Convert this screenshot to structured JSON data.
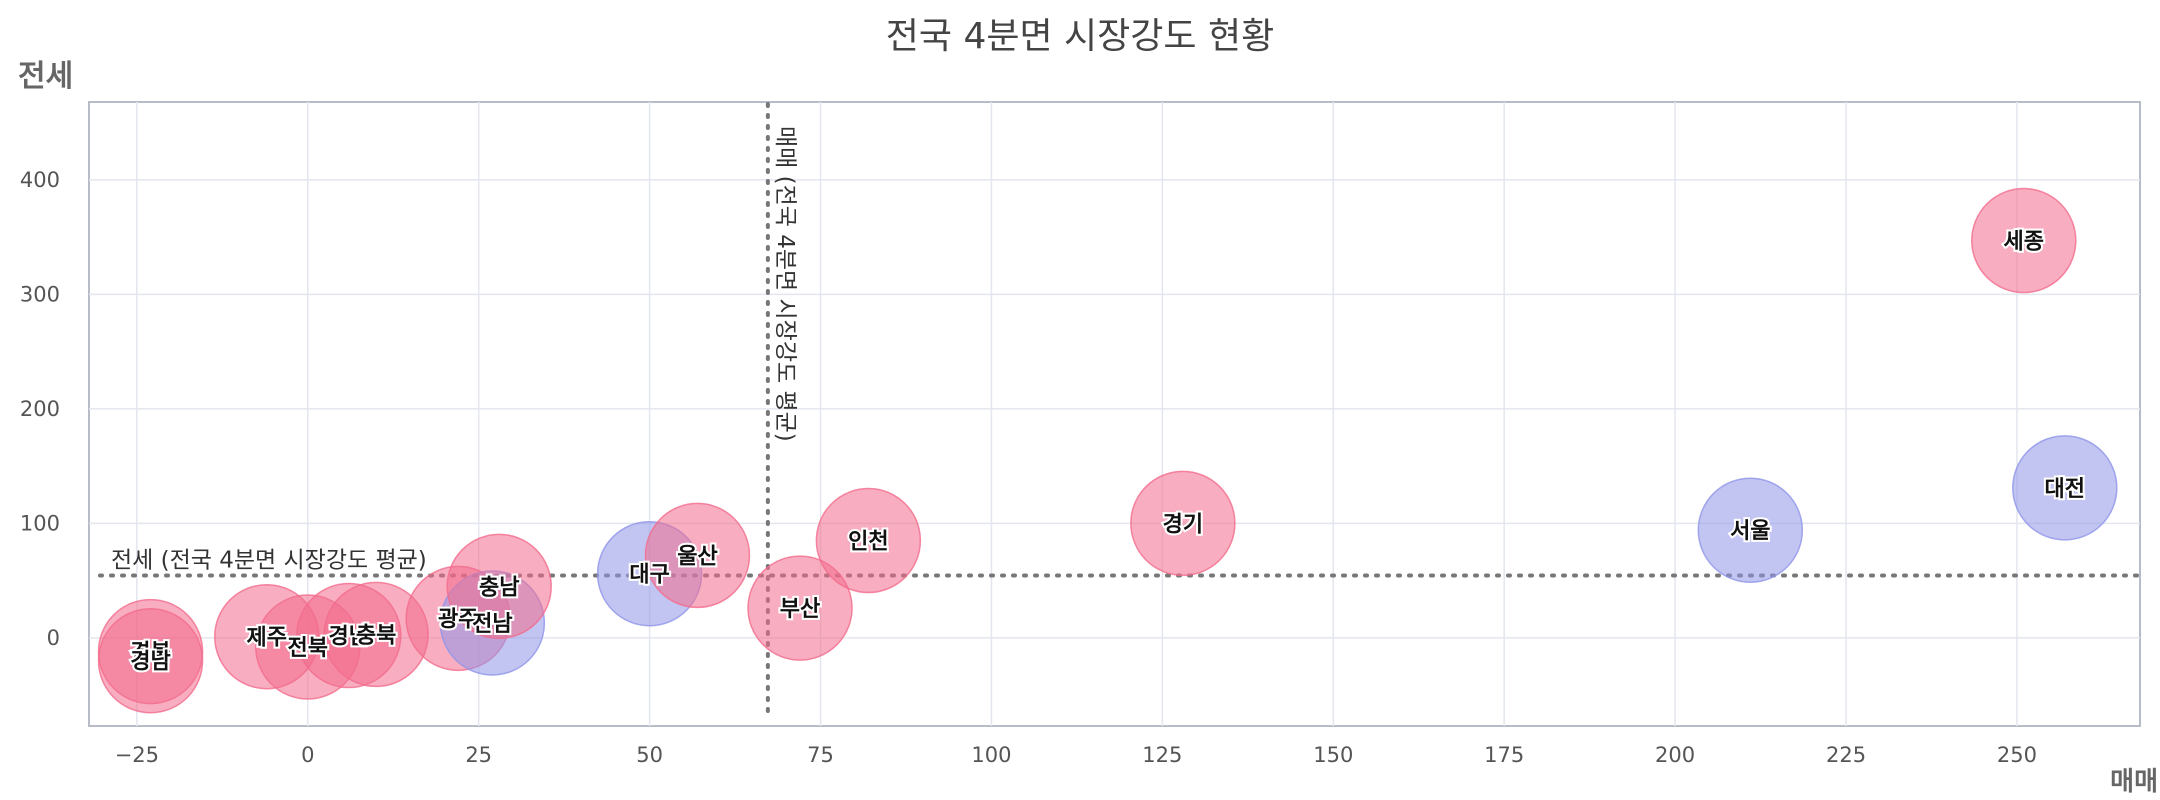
{
  "chart_data": {
    "type": "scatter",
    "title": "전국 4분면 시장강도 현황",
    "xlabel": "매매",
    "ylabel": "전세",
    "xlim": [
      -32,
      268
    ],
    "ylim": [
      -77,
      468
    ],
    "x_ticks": [
      -25,
      0,
      25,
      50,
      75,
      100,
      125,
      150,
      175,
      200,
      225,
      250
    ],
    "y_ticks": [
      0,
      100,
      200,
      300,
      400
    ],
    "grid": true,
    "reference_lines": {
      "x_mean": {
        "value": 67.3,
        "label": "매매 (전국 4분면 시장강도 평균)"
      },
      "y_mean": {
        "value": 54.5,
        "label": "전세 (전국 4분면 시장강도 평균)"
      }
    },
    "colors": {
      "pink": "#f26b8c",
      "blue": "#8f95e8"
    },
    "points": [
      {
        "name": "경북",
        "x": -23,
        "y": -12,
        "color": "pink"
      },
      {
        "name": "경남",
        "x": -23,
        "y": -20,
        "color": "pink"
      },
      {
        "name": "제주",
        "x": -6,
        "y": 1,
        "color": "pink"
      },
      {
        "name": "전북",
        "x": 0,
        "y": -8,
        "color": "pink"
      },
      {
        "name": "경남",
        "x": 6,
        "y": 2,
        "color": "pink"
      },
      {
        "name": "충북",
        "x": 10,
        "y": 3,
        "color": "pink"
      },
      {
        "name": "광주",
        "x": 22,
        "y": 17,
        "color": "pink"
      },
      {
        "name": "전남",
        "x": 27,
        "y": 13,
        "color": "blue"
      },
      {
        "name": "충남",
        "x": 28,
        "y": 45,
        "color": "pink"
      },
      {
        "name": "대구",
        "x": 50,
        "y": 56,
        "color": "blue"
      },
      {
        "name": "울산",
        "x": 57,
        "y": 72,
        "color": "pink"
      },
      {
        "name": "부산",
        "x": 72,
        "y": 26,
        "color": "pink"
      },
      {
        "name": "인천",
        "x": 82,
        "y": 85,
        "color": "pink"
      },
      {
        "name": "경기",
        "x": 128,
        "y": 100,
        "color": "pink"
      },
      {
        "name": "서울",
        "x": 211,
        "y": 94,
        "color": "blue"
      },
      {
        "name": "세종",
        "x": 251,
        "y": 347,
        "color": "pink"
      },
      {
        "name": "대전",
        "x": 257,
        "y": 131,
        "color": "blue"
      }
    ]
  }
}
